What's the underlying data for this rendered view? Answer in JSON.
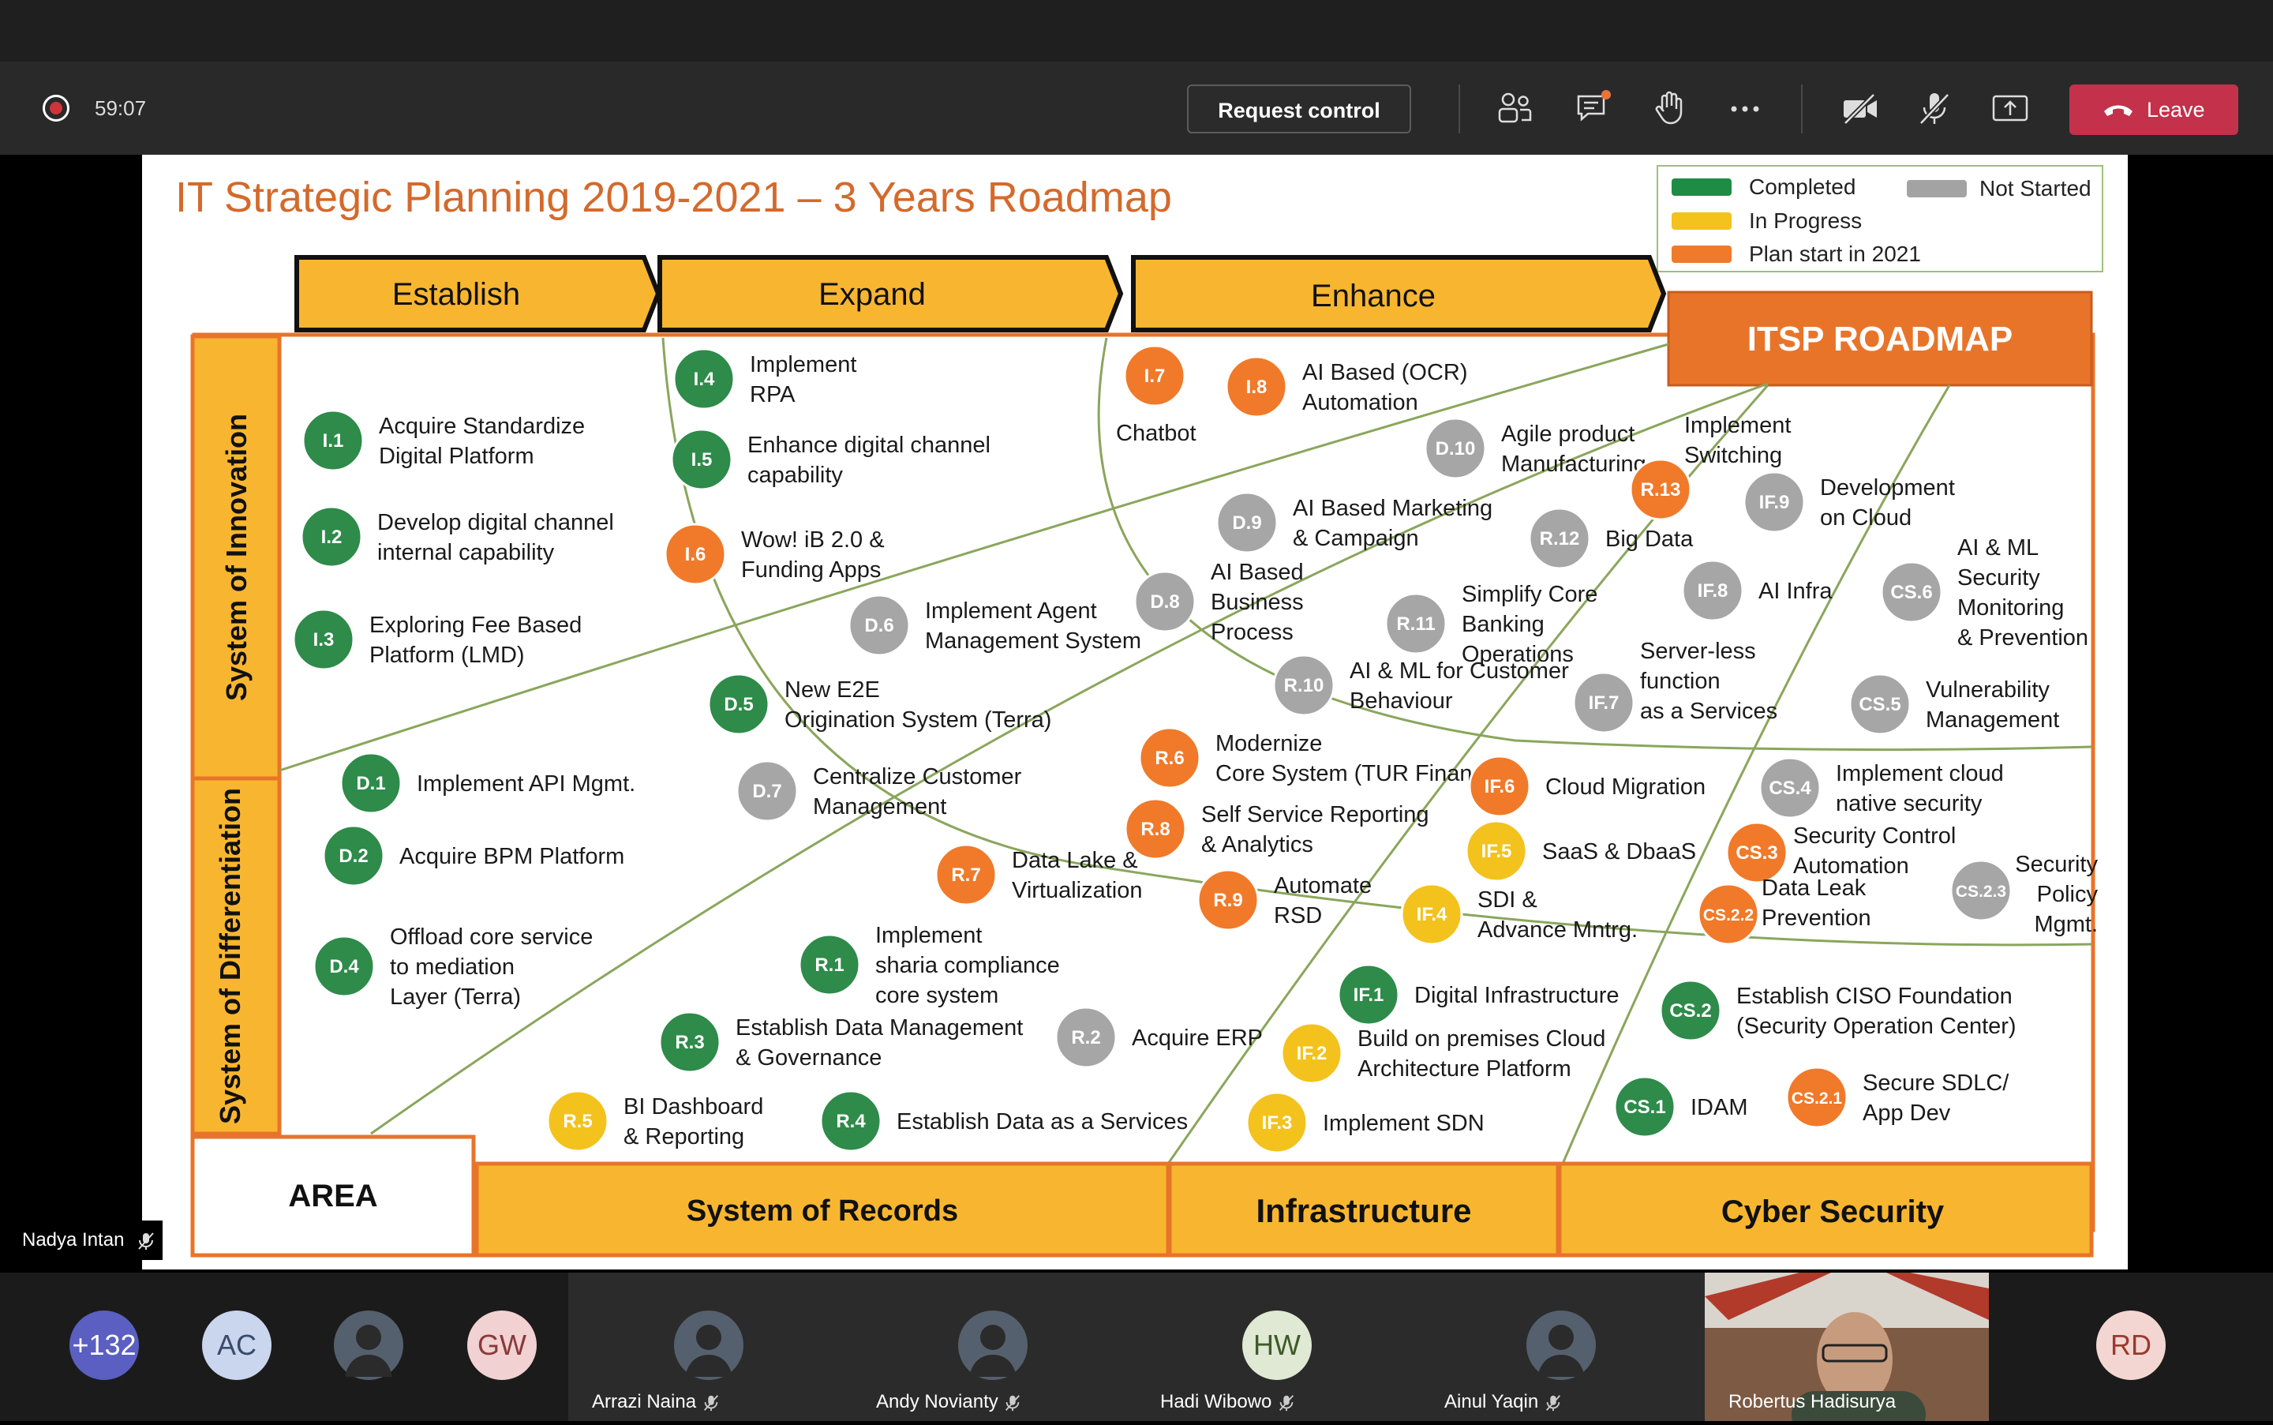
{
  "call": {
    "timer": "59:07",
    "request_control": "Request control",
    "leave": "Leave",
    "toolbar_icons": [
      "participants-icon",
      "chat-icon",
      "raise-hand-icon",
      "more-icon",
      "camera-off-icon",
      "mic-off-icon",
      "share-screen-icon",
      "phone-icon"
    ]
  },
  "presenter_tag": "Nadya Intan",
  "slide": {
    "title": "IT Strategic Planning 2019-2021 – 3 Years Roadmap",
    "legend": [
      {
        "label": "Completed",
        "color": "#1e8c45"
      },
      {
        "label": "Not Started",
        "color": "#a3a3a3"
      },
      {
        "label": "In Progress",
        "color": "#f3c21d"
      },
      {
        "label": "Plan start in 2021",
        "color": "#f07a2a"
      }
    ],
    "phases": [
      "Establish",
      "Expand",
      "Enhance"
    ],
    "roadmap_label": "ITSP ROADMAP",
    "rows": [
      "System of Innovation",
      "System of Differentiation"
    ],
    "area_label": "AREA",
    "areas": [
      "System of Records",
      "Infrastructure",
      "Cyber Security"
    ],
    "colors": {
      "completed": "#2e8b4a",
      "not_started": "#a6a6a6",
      "in_progress": "#f3c21d",
      "planned": "#f07a2a",
      "phase_fill": "#f8b630",
      "line": "#8aa65c",
      "title": "#d36a2c",
      "roadmap": "#e8742a"
    },
    "items": [
      {
        "code": "I.1",
        "label": "Acquire Standardize Digital Platform",
        "status": "completed"
      },
      {
        "code": "I.2",
        "label": "Develop digital channel internal capability",
        "status": "completed"
      },
      {
        "code": "I.3",
        "label": "Exploring Fee Based Platform (LMD)",
        "status": "completed"
      },
      {
        "code": "I.4",
        "label": "Implement RPA",
        "status": "completed"
      },
      {
        "code": "I.5",
        "label": "Enhance digital channel capability",
        "status": "completed"
      },
      {
        "code": "I.6",
        "label": "Wow! iB 2.0 & Funding Apps",
        "status": "planned"
      },
      {
        "code": "I.7",
        "label": "Chatbot",
        "status": "planned"
      },
      {
        "code": "I.8",
        "label": "AI Based (OCR) Automation",
        "status": "planned"
      },
      {
        "code": "D.10",
        "label": "Agile product Manufacturing",
        "status": "not_started"
      },
      {
        "code": "R.13",
        "label": "Implement Switching",
        "status": "planned"
      },
      {
        "code": "IF.9",
        "label": "Development on Cloud",
        "status": "not_started"
      },
      {
        "code": "D.9",
        "label": "AI Based Marketing & Campaign",
        "status": "not_started"
      },
      {
        "code": "R.12",
        "label": "Big Data",
        "status": "not_started"
      },
      {
        "code": "D.6",
        "label": "Implement Agent Management System",
        "status": "not_started"
      },
      {
        "code": "D.8",
        "label": "AI Based Business Process",
        "status": "not_started"
      },
      {
        "code": "R.11",
        "label": "Simplify Core Banking Operations",
        "status": "not_started"
      },
      {
        "code": "IF.8",
        "label": "AI Infra",
        "status": "not_started"
      },
      {
        "code": "CS.6",
        "label": "AI & ML Security Monitoring & Prevention",
        "status": "not_started"
      },
      {
        "code": "D.5",
        "label": "New E2E Origination System (Terra)",
        "status": "completed"
      },
      {
        "code": "R.10",
        "label": "AI & ML for Customer Behaviour",
        "status": "not_started"
      },
      {
        "code": "IF.7",
        "label": "Server-less function as a Services",
        "status": "not_started"
      },
      {
        "code": "CS.5",
        "label": "Vulnerability Management",
        "status": "not_started"
      },
      {
        "code": "D.1",
        "label": "Implement API Mgmt.",
        "status": "completed"
      },
      {
        "code": "R.6",
        "label": "Modernize Core System (TUR Financing)",
        "status": "planned"
      },
      {
        "code": "D.7",
        "label": "Centralize Customer Management",
        "status": "not_started"
      },
      {
        "code": "IF.6",
        "label": "Cloud Migration",
        "status": "planned"
      },
      {
        "code": "CS.4",
        "label": "Implement cloud native security",
        "status": "not_started"
      },
      {
        "code": "D.2",
        "label": "Acquire BPM Platform",
        "status": "completed"
      },
      {
        "code": "R.8",
        "label": "Self Service Reporting & Analytics",
        "status": "planned"
      },
      {
        "code": "IF.5",
        "label": "SaaS & DbaaS",
        "status": "in_progress"
      },
      {
        "code": "CS.3",
        "label": "Security Control Automation",
        "status": "planned"
      },
      {
        "code": "R.7",
        "label": "Data Lake & Virtualization",
        "status": "planned"
      },
      {
        "code": "R.9",
        "label": "Automate RSD",
        "status": "planned"
      },
      {
        "code": "IF.4",
        "label": "SDI & Advance Mntrg.",
        "status": "in_progress"
      },
      {
        "code": "CS.2.2",
        "label": "Data Leak Prevention",
        "status": "planned"
      },
      {
        "code": "CS.2.3",
        "label": "Security Policy Mgmt.",
        "status": "not_started"
      },
      {
        "code": "D.4",
        "label": "Offload core service to mediation Layer (Terra)",
        "status": "completed"
      },
      {
        "code": "R.1",
        "label": "Implement sharia compliance core system",
        "status": "completed"
      },
      {
        "code": "IF.1",
        "label": "Digital Infrastructure",
        "status": "completed"
      },
      {
        "code": "CS.2",
        "label": "Establish CISO Foundation (Security Operation Center)",
        "status": "completed"
      },
      {
        "code": "R.3",
        "label": "Establish Data Management & Governance",
        "status": "completed"
      },
      {
        "code": "R.2",
        "label": "Acquire ERP",
        "status": "not_started"
      },
      {
        "code": "IF.2",
        "label": "Build on premises Cloud Architecture Platform",
        "status": "in_progress"
      },
      {
        "code": "R.5",
        "label": "BI Dashboard & Reporting",
        "status": "in_progress"
      },
      {
        "code": "R.4",
        "label": "Establish Data as a Services",
        "status": "completed"
      },
      {
        "code": "IF.3",
        "label": "Implement SDN",
        "status": "in_progress"
      },
      {
        "code": "CS.1",
        "label": "IDAM",
        "status": "completed"
      },
      {
        "code": "CS.2.1",
        "label": "Secure SDLC/ App Dev",
        "status": "planned"
      }
    ]
  },
  "participants": [
    {
      "initials": "+132",
      "color": "#5a5fc1",
      "text_color": "#fff"
    },
    {
      "initials": "AC",
      "color": "#c9d6ee",
      "text_color": "#3a4a6a"
    },
    {
      "initials": "",
      "photo": true
    },
    {
      "initials": "GW",
      "color": "#f1d1d1",
      "text_color": "#8a3a3a"
    },
    {
      "name": "Arrazi Naina",
      "photo": true
    },
    {
      "name": "Andy Novianty",
      "photo": true
    },
    {
      "name": "Hadi Wibowo",
      "initials": "HW",
      "color": "#dfe9d3",
      "text_color": "#3f5a2a"
    },
    {
      "name": "Ainul Yaqin",
      "photo": true
    },
    {
      "name": "Robertus Hadisurya",
      "video": true
    },
    {
      "initials": "RD",
      "color": "#f3d6d2",
      "text_color": "#9a3a2e"
    }
  ]
}
